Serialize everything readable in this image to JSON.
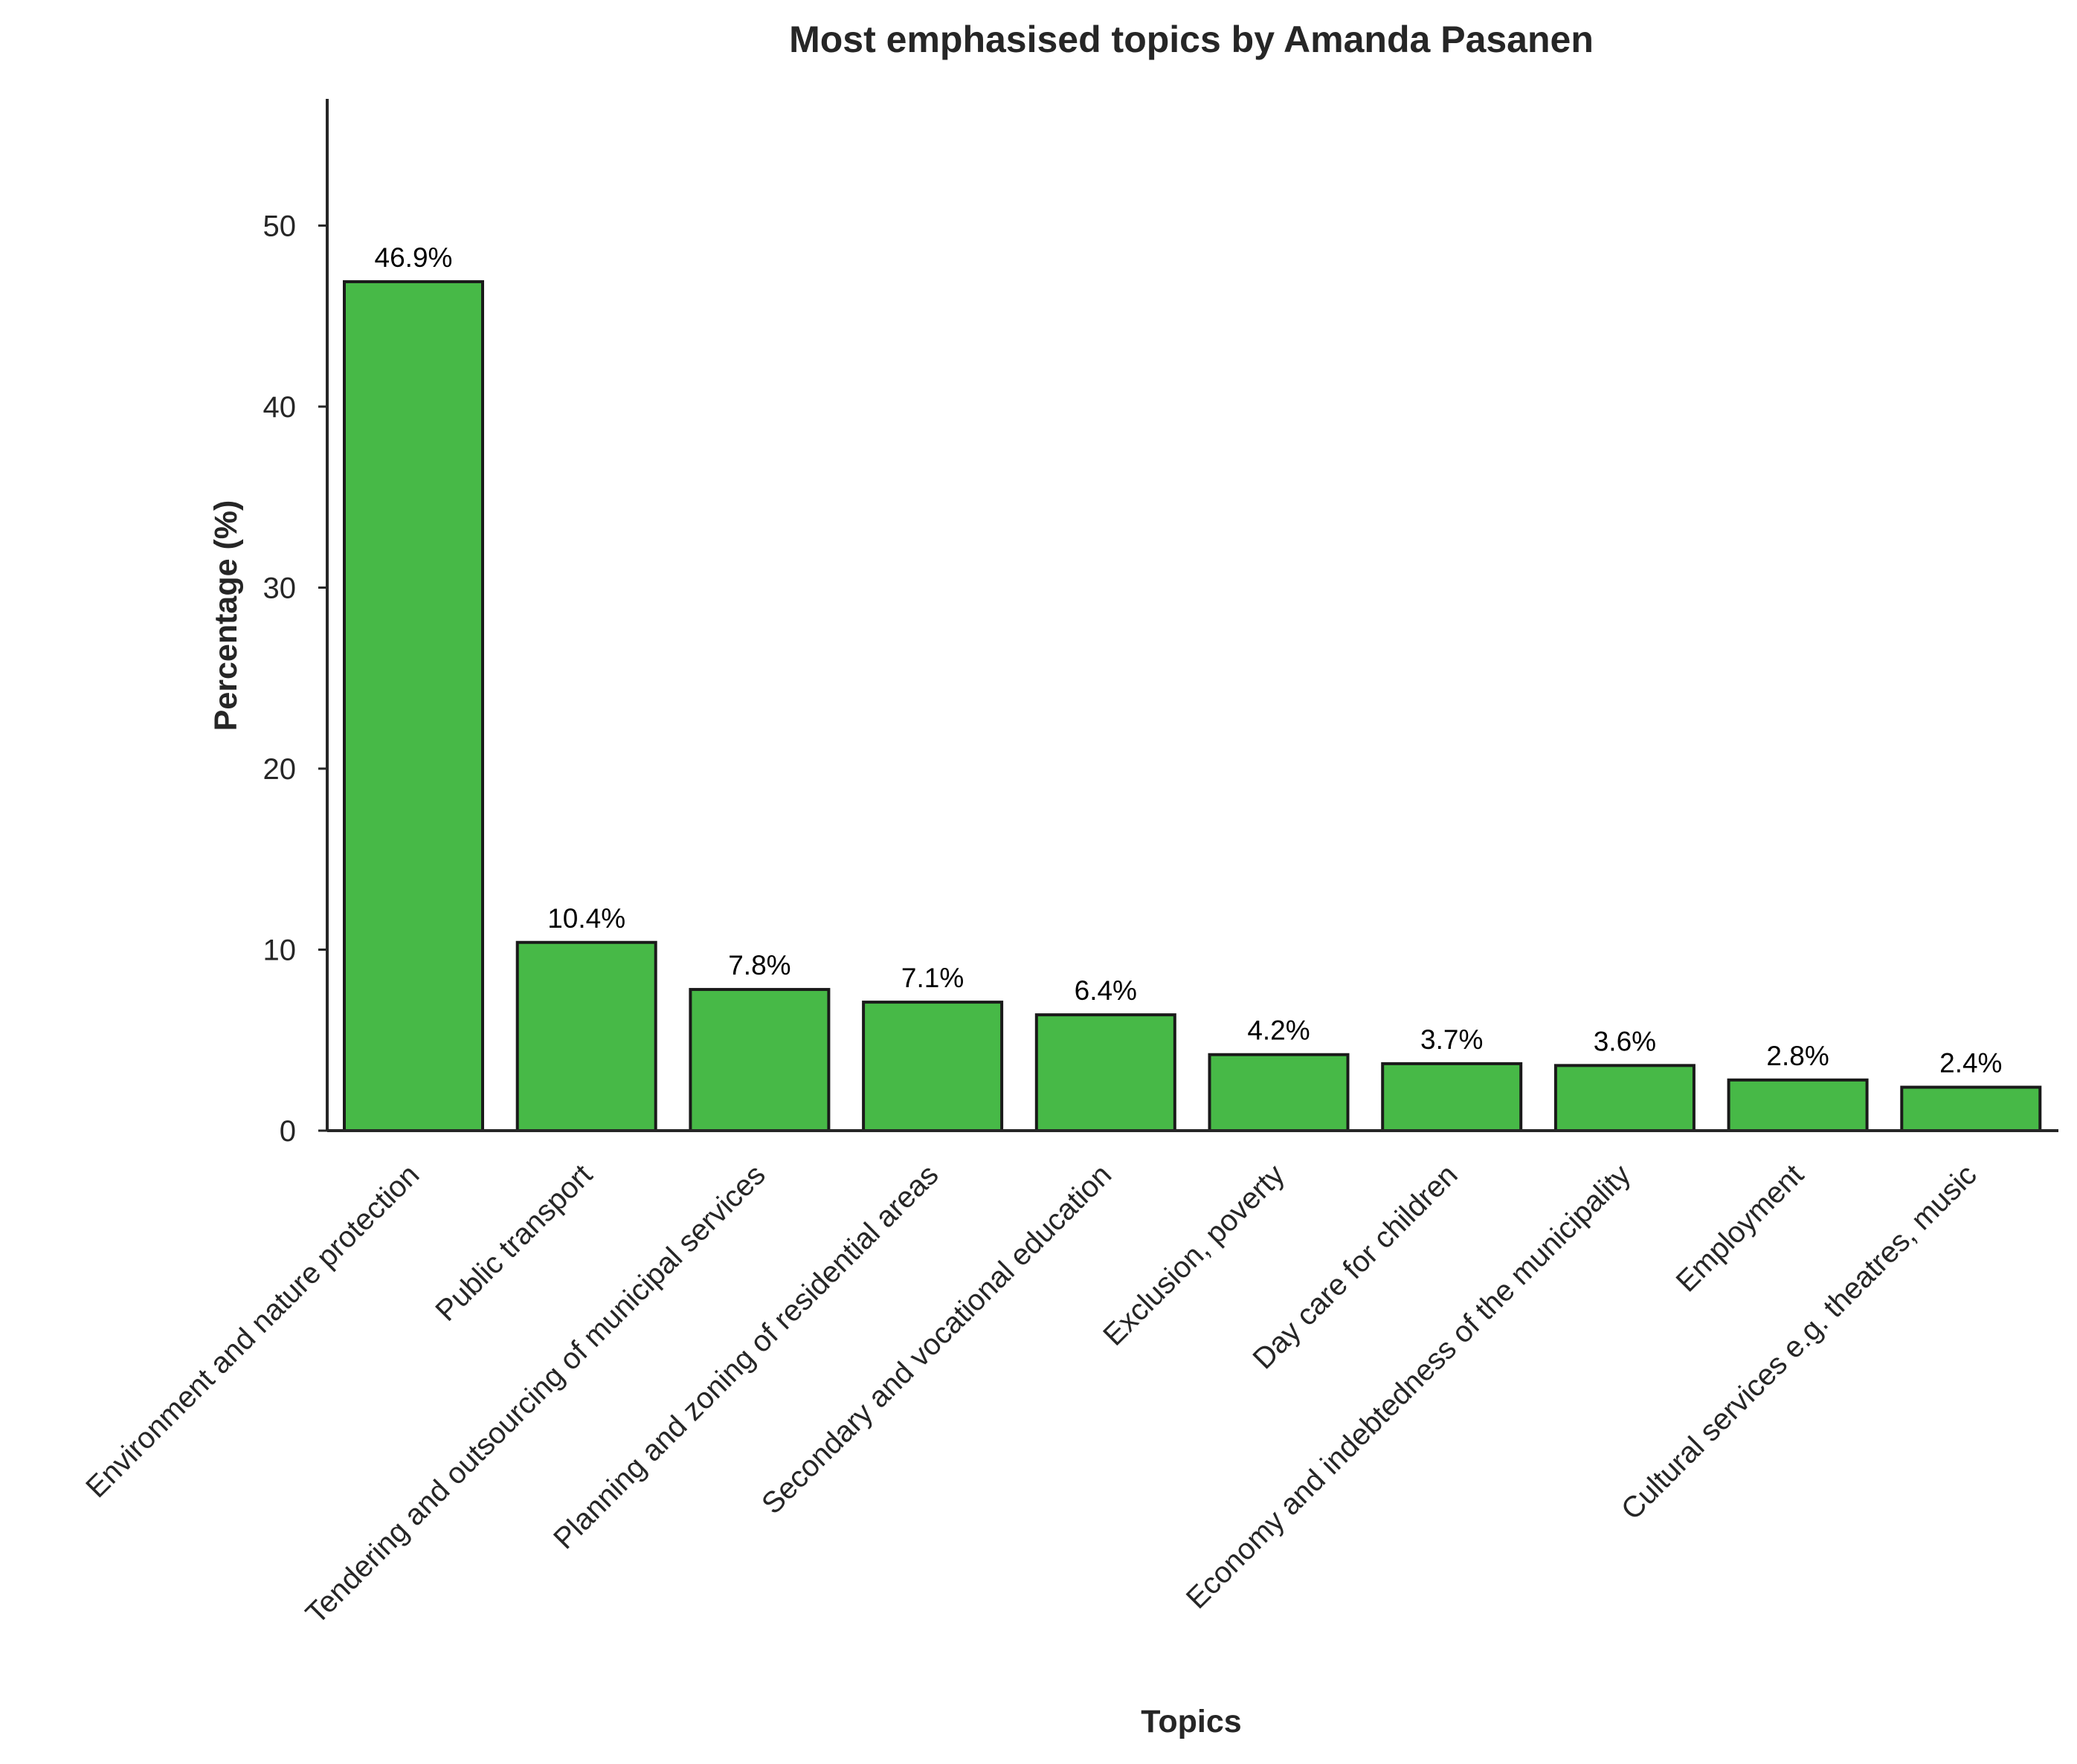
{
  "chart_data": {
    "type": "bar",
    "title": "Most emphasised topics by Amanda Pasanen",
    "xlabel": "Topics",
    "ylabel": "Percentage (%)",
    "categories": [
      "Environment and nature protection",
      "Public transport",
      "Tendering and outsourcing of municipal services",
      "Planning and zoning of residential areas",
      "Secondary and vocational education",
      "Exclusion, poverty",
      "Day care for children",
      "Economy and indebtedness of the municipality",
      "Employment",
      "Cultural services e.g. theatres, music"
    ],
    "values": [
      46.9,
      10.4,
      7.8,
      7.1,
      6.4,
      4.2,
      3.7,
      3.6,
      2.8,
      2.4
    ],
    "data_labels": [
      "46.9%",
      "10.4%",
      "7.8%",
      "7.1%",
      "6.4%",
      "4.2%",
      "3.7%",
      "3.6%",
      "2.8%",
      "2.4%"
    ],
    "yticks": [
      0,
      10,
      20,
      30,
      40,
      50
    ],
    "ylim": [
      0,
      57
    ],
    "bar_color": "#47b947",
    "bar_edge_color": "#1a1a1a",
    "grid": false,
    "legend": "none"
  }
}
